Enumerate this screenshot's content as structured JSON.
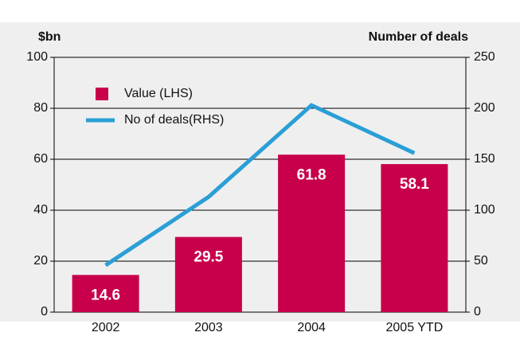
{
  "chart_data": {
    "type": "bar_line",
    "y_label": "$bn",
    "y2_label": "Number of deals",
    "categories": [
      "2002",
      "2003",
      "2004",
      "2005 YTD"
    ],
    "series": [
      {
        "name": "Value (LHS)",
        "type": "bar",
        "color": "#c8004b",
        "values": [
          14.6,
          29.5,
          61.8,
          58.1
        ]
      },
      {
        "name": "No of deals(RHS)",
        "type": "line",
        "axis": "y2",
        "color": "#2a9fd6",
        "values": [
          46,
          113,
          203,
          156
        ]
      }
    ],
    "ylim": [
      0,
      100
    ],
    "yticks": [
      0,
      20,
      40,
      60,
      80,
      100
    ],
    "y2lim": [
      0,
      250
    ],
    "y2ticks": [
      0,
      50,
      100,
      150,
      200,
      250
    ],
    "grid": true,
    "legend": "upper left"
  }
}
